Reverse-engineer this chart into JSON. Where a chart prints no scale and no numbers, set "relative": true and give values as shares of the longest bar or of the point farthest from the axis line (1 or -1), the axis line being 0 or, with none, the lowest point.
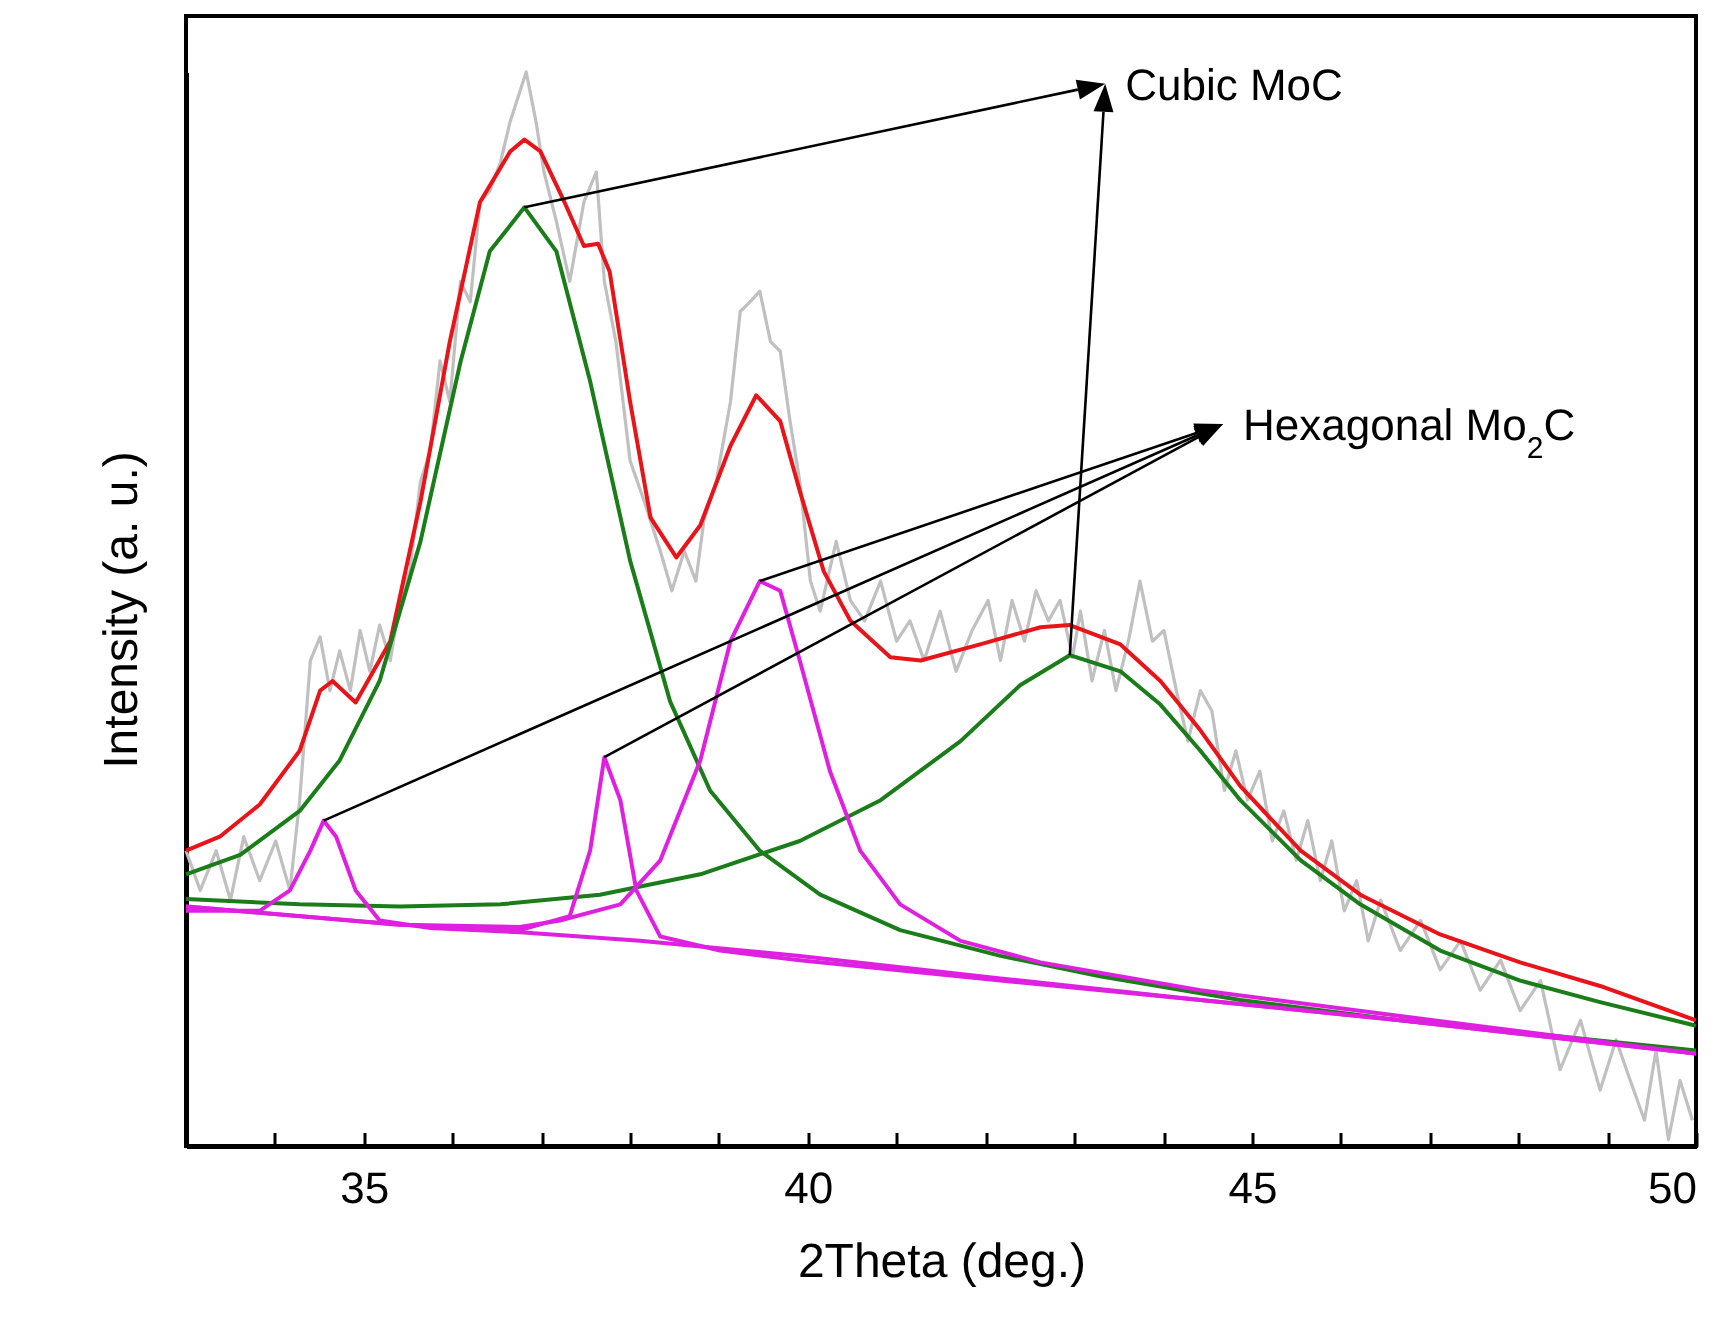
{
  "chart_data": {
    "type": "line",
    "relative": true,
    "xlabel": "2Theta (deg.)",
    "ylabel": "Intensity (a. u.)",
    "xlim": [
      33,
      50
    ],
    "xticks": [
      {
        "value": 34,
        "label": null
      },
      35,
      {
        "value": 36,
        "label": null
      },
      {
        "value": 37,
        "label": null
      },
      {
        "value": 38,
        "label": null
      },
      {
        "value": 39,
        "label": null
      },
      40,
      {
        "value": 41,
        "label": null
      },
      {
        "value": 42,
        "label": null
      },
      {
        "value": 43,
        "label": null
      },
      {
        "value": 44,
        "label": null
      },
      45,
      {
        "value": 46,
        "label": null
      },
      {
        "value": 47,
        "label": null
      },
      {
        "value": 48,
        "label": null
      },
      {
        "value": 49,
        "label": null
      },
      50
    ],
    "series": [
      {
        "color": "#c0c0c0",
        "x": [
          33.0,
          33.16,
          33.34,
          33.5,
          33.65,
          33.83,
          34.01,
          34.17,
          34.28,
          34.4,
          34.51,
          34.62,
          34.73,
          34.85,
          34.96,
          35.07,
          35.18,
          35.3,
          35.41,
          35.52,
          35.64,
          35.75,
          35.86,
          35.97,
          36.09,
          36.2,
          36.31,
          36.42,
          36.54,
          36.65,
          36.76,
          36.83,
          36.94,
          37.03,
          37.17,
          37.32,
          37.48,
          37.62,
          37.71,
          37.84,
          38.0,
          38.16,
          38.34,
          38.47,
          38.61,
          38.74,
          38.83,
          38.97,
          39.13,
          39.24,
          39.35,
          39.46,
          39.58,
          39.69,
          39.8,
          39.91,
          40.03,
          40.14,
          40.32,
          40.48,
          40.64,
          40.82,
          41.0,
          41.15,
          41.31,
          41.49,
          41.67,
          41.85,
          42.03,
          42.17,
          42.3,
          42.44,
          42.57,
          42.71,
          42.84,
          42.98,
          43.07,
          43.2,
          43.34,
          43.47,
          43.61,
          43.74,
          43.88,
          44.01,
          44.15,
          44.28,
          44.42,
          44.55,
          44.69,
          44.82,
          44.95,
          45.09,
          45.23,
          45.36,
          45.5,
          45.63,
          45.77,
          45.9,
          46.04,
          46.18,
          46.31,
          46.45,
          46.67,
          46.9,
          47.12,
          47.35,
          47.57,
          47.8,
          48.02,
          48.25,
          48.47,
          48.7,
          48.92,
          49.1,
          49.26,
          49.42,
          49.55,
          49.69,
          49.82,
          49.96
        ],
        "values": [
          0.275,
          0.238,
          0.275,
          0.229,
          0.288,
          0.247,
          0.284,
          0.238,
          0.322,
          0.452,
          0.474,
          0.424,
          0.461,
          0.424,
          0.48,
          0.442,
          0.485,
          0.452,
          0.508,
          0.535,
          0.619,
          0.647,
          0.731,
          0.693,
          0.805,
          0.786,
          0.879,
          0.889,
          0.916,
          0.954,
          0.982,
          1,
          0.954,
          0.907,
          0.861,
          0.805,
          0.879,
          0.907,
          0.805,
          0.749,
          0.638,
          0.6,
          0.554,
          0.517,
          0.554,
          0.526,
          0.582,
          0.619,
          0.693,
          0.777,
          0.786,
          0.796,
          0.749,
          0.74,
          0.675,
          0.619,
          0.526,
          0.498,
          0.563,
          0.508,
          0.489,
          0.526,
          0.47,
          0.489,
          0.452,
          0.498,
          0.442,
          0.48,
          0.508,
          0.452,
          0.508,
          0.47,
          0.517,
          0.489,
          0.508,
          0.455,
          0.498,
          0.433,
          0.48,
          0.424,
          0.47,
          0.526,
          0.47,
          0.48,
          0.424,
          0.377,
          0.424,
          0.405,
          0.331,
          0.368,
          0.322,
          0.349,
          0.284,
          0.312,
          0.266,
          0.303,
          0.247,
          0.284,
          0.219,
          0.247,
          0.191,
          0.229,
          0.182,
          0.21,
          0.164,
          0.191,
          0.145,
          0.173,
          0.126,
          0.154,
          0.071,
          0.117,
          0.052,
          0.099,
          0.061,
          0.024,
          0.089,
          0.006,
          0.061,
          0.024
        ]
      },
      {
        "color": "#e8141a",
        "x": [
          33.0,
          33.38,
          33.83,
          34.28,
          34.51,
          34.65,
          34.91,
          35.3,
          35.64,
          35.97,
          36.31,
          36.65,
          36.81,
          36.99,
          37.26,
          37.48,
          37.64,
          37.77,
          38.0,
          38.23,
          38.52,
          38.79,
          39.13,
          39.42,
          39.69,
          39.91,
          40.18,
          40.48,
          40.93,
          41.27,
          41.94,
          42.62,
          42.95,
          43.52,
          43.97,
          44.42,
          44.87,
          45.55,
          46.22,
          47.12,
          48.02,
          48.92,
          50.0
        ],
        "values": [
          0.275,
          0.288,
          0.318,
          0.368,
          0.424,
          0.433,
          0.413,
          0.47,
          0.6,
          0.749,
          0.879,
          0.926,
          0.937,
          0.926,
          0.879,
          0.838,
          0.84,
          0.814,
          0.693,
          0.585,
          0.548,
          0.578,
          0.652,
          0.699,
          0.675,
          0.61,
          0.535,
          0.489,
          0.455,
          0.452,
          0.467,
          0.483,
          0.485,
          0.467,
          0.433,
          0.387,
          0.335,
          0.275,
          0.234,
          0.197,
          0.171,
          0.149,
          0.117
        ]
      },
      {
        "color": "#1a7d1a",
        "x": [
          33.0,
          33.61,
          34.28,
          34.73,
          35.18,
          35.64,
          36.09,
          36.42,
          36.81,
          37.17,
          37.55,
          38.0,
          38.45,
          38.9,
          39.46,
          40.14,
          41.04,
          42.17,
          43.29,
          44.87,
          46.67,
          48.47,
          50.0
        ],
        "values": [
          0.253,
          0.271,
          0.312,
          0.359,
          0.433,
          0.563,
          0.73,
          0.833,
          0.874,
          0.833,
          0.712,
          0.545,
          0.414,
          0.331,
          0.275,
          0.234,
          0.201,
          0.177,
          0.158,
          0.136,
          0.117,
          0.102,
          0.089
        ]
      },
      {
        "color": "#1a7d1a",
        "x": [
          33.0,
          34.28,
          35.41,
          36.54,
          37.66,
          38.79,
          39.91,
          40.82,
          41.72,
          42.39,
          42.95,
          43.52,
          43.97,
          44.42,
          44.87,
          45.55,
          46.22,
          47.12,
          48.02,
          48.92,
          50.0
        ],
        "values": [
          0.23,
          0.225,
          0.223,
          0.225,
          0.234,
          0.253,
          0.284,
          0.322,
          0.377,
          0.429,
          0.457,
          0.442,
          0.411,
          0.368,
          0.322,
          0.266,
          0.225,
          0.182,
          0.154,
          0.134,
          0.112
        ]
      },
      {
        "color": "#e020e0",
        "x": [
          33.0,
          33.83,
          34.17,
          34.4,
          34.55,
          34.69,
          34.91,
          35.18,
          35.75,
          36.76,
          38.11,
          39.91,
          42.17,
          44.42,
          46.67,
          50.0
        ],
        "values": [
          0.219,
          0.219,
          0.238,
          0.275,
          0.303,
          0.288,
          0.238,
          0.21,
          0.203,
          0.199,
          0.191,
          0.177,
          0.156,
          0.136,
          0.117,
          0.086
        ]
      },
      {
        "color": "#e020e0",
        "x": [
          33.0,
          35.41,
          36.76,
          37.32,
          37.55,
          37.71,
          37.89,
          38.07,
          38.34,
          39.01,
          39.91,
          42.17,
          44.42,
          46.67,
          50.0
        ],
        "values": [
          0.223,
          0.206,
          0.201,
          0.214,
          0.275,
          0.362,
          0.322,
          0.238,
          0.195,
          0.182,
          0.173,
          0.154,
          0.136,
          0.117,
          0.086
        ]
      },
      {
        "color": "#e020e0",
        "x": [
          33.0,
          35.41,
          36.76,
          37.21,
          37.89,
          38.34,
          38.79,
          39.13,
          39.46,
          39.69,
          39.91,
          40.25,
          40.59,
          41.04,
          41.72,
          42.62,
          44.42,
          46.67,
          50.0
        ],
        "values": [
          0.223,
          0.206,
          0.204,
          0.21,
          0.225,
          0.266,
          0.359,
          0.47,
          0.526,
          0.517,
          0.452,
          0.349,
          0.275,
          0.225,
          0.191,
          0.171,
          0.145,
          0.121,
          0.086
        ]
      }
    ],
    "annotations": [
      "Cubic MoC",
      "Hexagonal Mo$_{2}$C"
    ]
  }
}
